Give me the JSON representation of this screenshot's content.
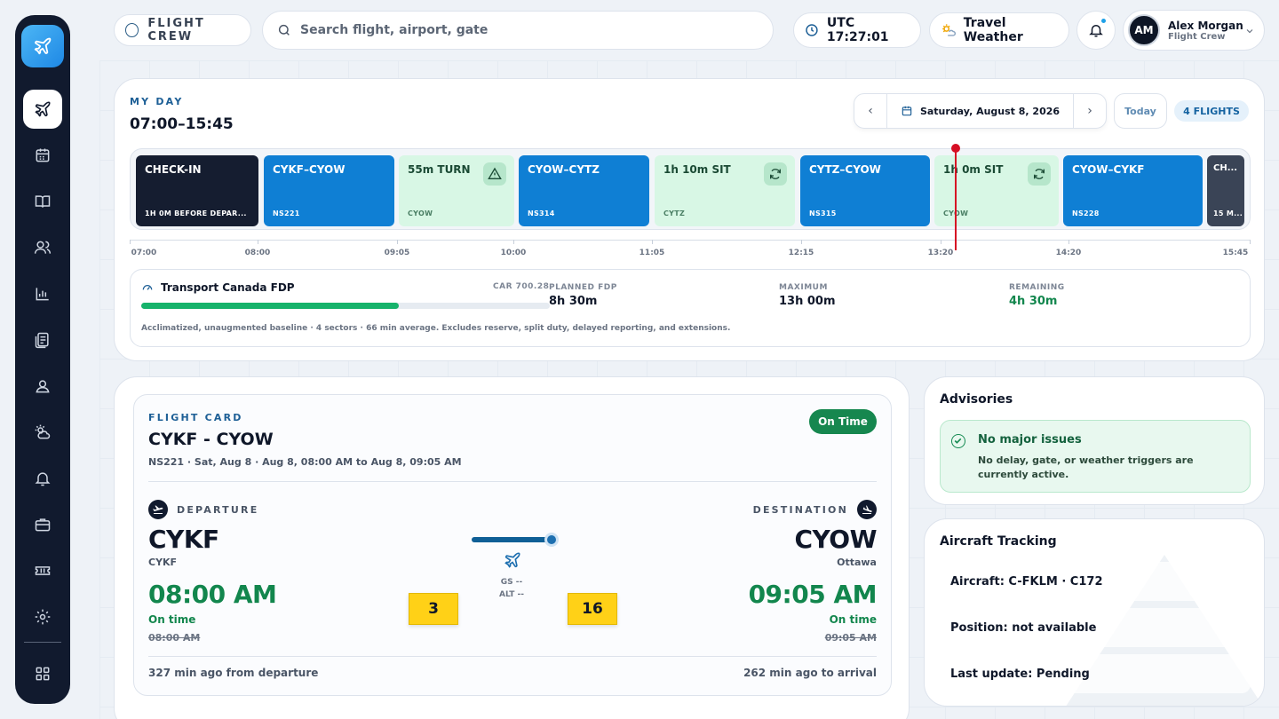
{
  "header": {
    "crew_pill": "FLIGHT CREW",
    "search_placeholder": "Search flight, airport, gate",
    "utc": "UTC 17:27:01",
    "weather": "Travel Weather",
    "user": {
      "initials": "AM",
      "name": "Alex Morgan",
      "role": "Flight Crew"
    }
  },
  "sidebar": {
    "items": [
      "flights",
      "calendar",
      "logbook",
      "crew",
      "analytics",
      "documents",
      "profile",
      "weather",
      "notifications",
      "briefcase",
      "tickets",
      "settings",
      "apps"
    ],
    "active": "flights"
  },
  "myday": {
    "eyebrow": "MY DAY",
    "time": "07:00–15:45",
    "date": "Saturday, August 8, 2026",
    "today": "Today",
    "flights_badge": "4 FLIGHTS",
    "blocks": [
      {
        "title": "CHECK-IN",
        "sub": "1H 0M BEFORE DEPAR...",
        "kind": "dark"
      },
      {
        "title": "CYKF–CYOW",
        "sub": "NS221",
        "kind": "blue"
      },
      {
        "title": "55m TURN",
        "sub": "CYOW",
        "kind": "green",
        "icon": "warning-icon"
      },
      {
        "title": "CYOW–CYTZ",
        "sub": "NS314",
        "kind": "blue"
      },
      {
        "title": "1h 10m SIT",
        "sub": "CYTZ",
        "kind": "green",
        "icon": "refresh-icon"
      },
      {
        "title": "CYTZ–CYOW",
        "sub": "NS315",
        "kind": "blue"
      },
      {
        "title": "1h 0m SIT",
        "sub": "CYOW",
        "kind": "green",
        "icon": "refresh-icon"
      },
      {
        "title": "CYOW–CYKF",
        "sub": "NS228",
        "kind": "blue"
      },
      {
        "title": "CH...",
        "sub": "15 M...",
        "kind": "gray"
      }
    ],
    "ticks": [
      "07:00",
      "08:00",
      "09:05",
      "10:00",
      "11:05",
      "12:15",
      "13:20",
      "14:20",
      "15:45"
    ],
    "fdp": {
      "title": "Transport Canada FDP",
      "car": "CAR 700.28",
      "progress_fraction": 0.63,
      "planned_label": "PLANNED FDP",
      "planned": "8h 30m",
      "max_label": "MAXIMUM",
      "max": "13h 00m",
      "remaining_label": "REMAINING",
      "remaining": "4h 30m",
      "note": "Acclimatized, unaugmented baseline · 4 sectors · 66 min average. Excludes reserve, split duty, delayed reporting, and extensions."
    }
  },
  "flight_card": {
    "eyebrow": "FLIGHT CARD",
    "route": "CYKF - CYOW",
    "sub": "NS221 · Sat, Aug 8 · Aug 8, 08:00 AM to Aug 8, 09:05 AM",
    "status_badge": "On Time",
    "departure": {
      "label": "DEPARTURE",
      "code": "CYKF",
      "city": "CYKF",
      "time": "08:00 AM",
      "status": "On time",
      "scheduled": "08:00 AM",
      "gate": "3",
      "ago": "327 min ago from departure"
    },
    "destination": {
      "label": "DESTINATION",
      "code": "CYOW",
      "city": "Ottawa",
      "time": "09:05 AM",
      "status": "On time",
      "scheduled": "09:05 AM",
      "gate": "16",
      "ago": "262 min ago to arrival"
    },
    "progress_fraction": 1.0,
    "gs": "GS --",
    "alt": "ALT --"
  },
  "advisories": {
    "title": "Advisories",
    "headline": "No major issues",
    "detail": "No delay, gate, or weather triggers are currently active."
  },
  "tracking": {
    "title": "Aircraft Tracking",
    "aircraft": "Aircraft: C-FKLM · C172",
    "position": "Position: not available",
    "update": "Last update: Pending"
  },
  "colors": {
    "accent": "#0f7fd4",
    "green": "#16874f",
    "dark": "#111a2e",
    "gate": "#ffd117",
    "now": "#d60f24"
  }
}
